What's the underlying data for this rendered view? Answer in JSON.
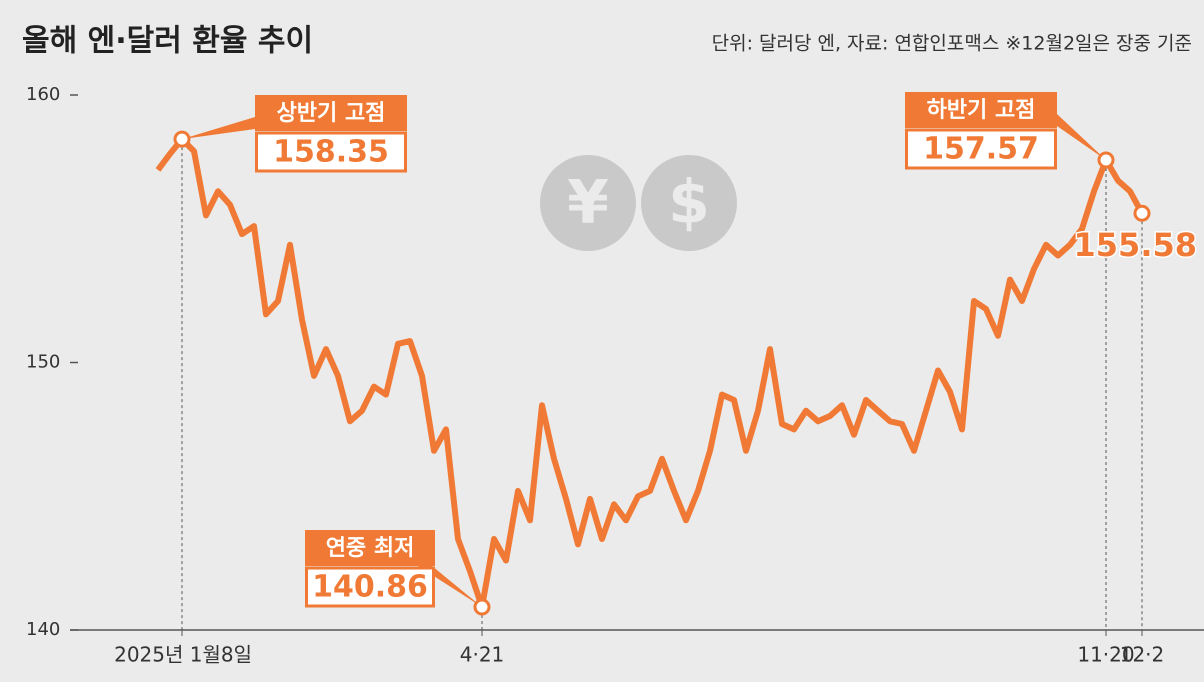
{
  "chart_data": {
    "type": "line",
    "title": "올해 엔·달러 환율 추이",
    "subtitle": "단위: 달러당 엔, 자료: 연합인포맥스 ※12월2일은 장중 기준",
    "icons": [
      "¥",
      "$"
    ],
    "color": "#f07a35",
    "ylim": [
      140,
      160
    ],
    "yticks": [
      140,
      150,
      160
    ],
    "categories": [
      null,
      null,
      "2025년 1월8일",
      null,
      null,
      null,
      null,
      null,
      null,
      null,
      null,
      null,
      null,
      null,
      null,
      null,
      null,
      null,
      null,
      null,
      null,
      null,
      null,
      null,
      null,
      null,
      null,
      "4·21",
      null,
      null,
      null,
      null,
      null,
      null,
      null,
      null,
      null,
      null,
      null,
      null,
      null,
      null,
      null,
      null,
      null,
      null,
      null,
      null,
      null,
      null,
      null,
      null,
      null,
      null,
      null,
      null,
      null,
      null,
      null,
      null,
      null,
      null,
      null,
      null,
      null,
      null,
      null,
      null,
      null,
      null,
      null,
      null,
      null,
      null,
      null,
      null,
      null,
      null,
      null,
      "11·20",
      null,
      null,
      "12·2"
    ],
    "values": [
      157.2,
      157.8,
      158.35,
      157.9,
      155.5,
      156.4,
      155.9,
      154.8,
      155.1,
      151.8,
      152.3,
      154.4,
      151.6,
      149.5,
      150.5,
      149.5,
      147.8,
      148.2,
      149.1,
      148.8,
      150.7,
      150.8,
      149.5,
      146.7,
      147.5,
      143.4,
      142.2,
      140.86,
      143.4,
      142.6,
      145.2,
      144.1,
      148.4,
      146.4,
      144.9,
      143.2,
      144.9,
      143.4,
      144.7,
      144.1,
      145.0,
      145.2,
      146.4,
      145.2,
      144.1,
      145.2,
      146.7,
      148.8,
      148.6,
      146.7,
      148.2,
      150.5,
      147.7,
      147.5,
      148.2,
      147.8,
      148.0,
      148.4,
      147.3,
      148.6,
      148.2,
      147.8,
      147.7,
      146.7,
      148.2,
      149.7,
      148.9,
      147.5,
      152.3,
      152.0,
      151.0,
      153.1,
      152.3,
      153.5,
      154.4,
      154.0,
      154.4,
      155.0,
      156.4,
      157.57,
      156.8,
      156.4,
      155.58
    ],
    "point_notes": [
      null,
      null,
      "상반기 고점",
      null,
      null,
      null,
      null,
      null,
      null,
      null,
      null,
      null,
      null,
      null,
      null,
      null,
      null,
      null,
      null,
      null,
      null,
      null,
      null,
      null,
      null,
      null,
      null,
      "연중 최저",
      null,
      null,
      null,
      null,
      null,
      null,
      null,
      null,
      null,
      null,
      null,
      null,
      null,
      null,
      null,
      null,
      null,
      null,
      null,
      null,
      null,
      null,
      null,
      null,
      null,
      null,
      null,
      null,
      null,
      null,
      null,
      null,
      null,
      null,
      null,
      null,
      null,
      null,
      null,
      null,
      null,
      null,
      null,
      null,
      null,
      null,
      null,
      null,
      null,
      null,
      null,
      "하반기 고점",
      null,
      null,
      null
    ],
    "value_labels": [
      null,
      null,
      "158.35",
      null,
      null,
      null,
      null,
      null,
      null,
      null,
      null,
      null,
      null,
      null,
      null,
      null,
      null,
      null,
      null,
      null,
      null,
      null,
      null,
      null,
      null,
      null,
      null,
      "140.86",
      null,
      null,
      null,
      null,
      null,
      null,
      null,
      null,
      null,
      null,
      null,
      null,
      null,
      null,
      null,
      null,
      null,
      null,
      null,
      null,
      null,
      null,
      null,
      null,
      null,
      null,
      null,
      null,
      null,
      null,
      null,
      null,
      null,
      null,
      null,
      null,
      null,
      null,
      null,
      null,
      null,
      null,
      null,
      null,
      null,
      null,
      null,
      null,
      null,
      null,
      null,
      "157.57",
      null,
      null,
      "155.58"
    ]
  }
}
